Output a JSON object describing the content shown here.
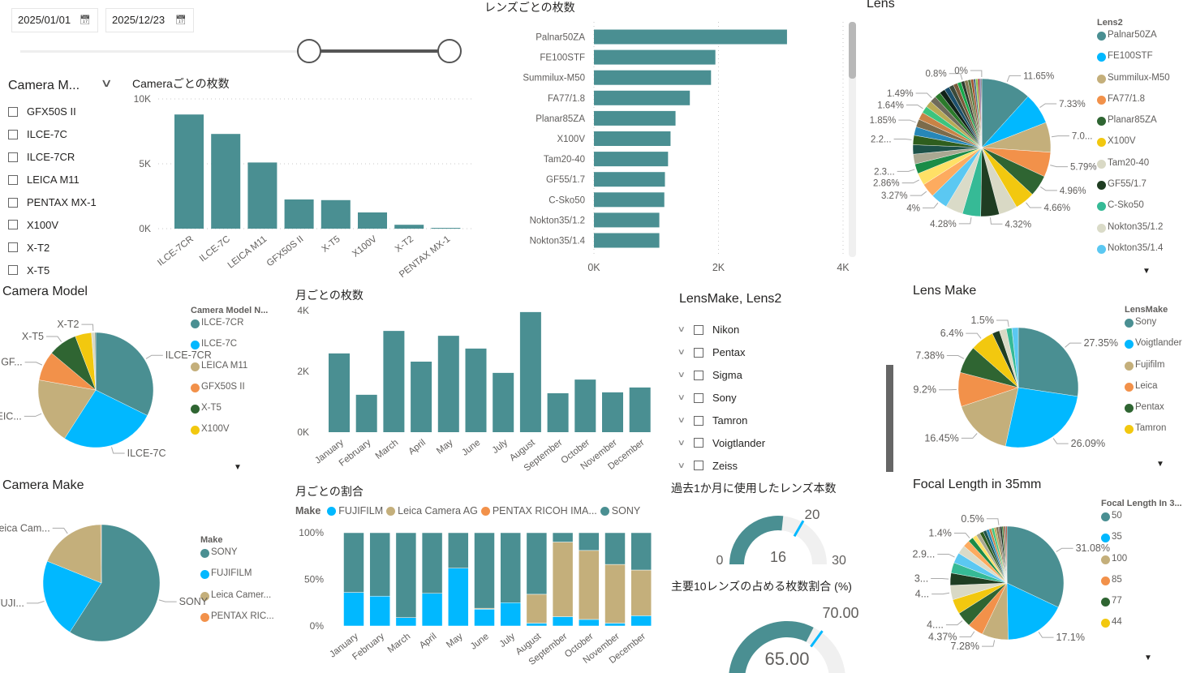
{
  "date_filter": {
    "start": "2025/01/01",
    "end": "2025/12/23",
    "calendar_icon": "calendar-icon"
  },
  "camera_slicer": {
    "title": "Camera M...",
    "items": [
      "GFX50S II",
      "ILCE-7C",
      "ILCE-7CR",
      "LEICA M11",
      "PENTAX MX-1",
      "X100V",
      "X-T2",
      "X-T5"
    ]
  },
  "lens_slicer": {
    "title": "LensMake, Lens2",
    "items": [
      "Nikon",
      "Pentax",
      "Sigma",
      "Sony",
      "Tamron",
      "Voigtlander",
      "Zeiss"
    ]
  },
  "colors": {
    "teal": "#4A8F92",
    "blue": "#01B8FF",
    "tan": "#C4AF7B",
    "orange": "#F2914A",
    "green": "#2F6532",
    "yellow": "#F2C80F",
    "track": "#F0F0F0"
  },
  "chart_data": [
    {
      "id": "camera_bar",
      "type": "bar",
      "title": "Cameraごとの枚数",
      "categories": [
        "ILCE-7CR",
        "ILCE-7C",
        "LEICA M11",
        "GFX50S II",
        "X-T5",
        "X100V",
        "X-T2",
        "PENTAX MX-1"
      ],
      "values": [
        8800,
        7300,
        5100,
        2250,
        2200,
        1250,
        300,
        60
      ],
      "yticks": [
        "0K",
        "5K",
        "10K"
      ],
      "ylim": [
        0,
        10000
      ],
      "grid": true
    },
    {
      "id": "lens_bar",
      "type": "bar",
      "orientation": "horizontal",
      "title": "レンズごとの枚数",
      "categories": [
        "Palnar50ZA",
        "FE100STF",
        "Summilux-M50",
        "FA77/1.8",
        "Planar85ZA",
        "X100V",
        "Tam20-40",
        "GF55/1.7",
        "C-Sko50",
        "Nokton35/1.2",
        "Nokton35/1.4"
      ],
      "values": [
        3100,
        1950,
        1880,
        1540,
        1310,
        1230,
        1190,
        1140,
        1130,
        1050,
        1050
      ],
      "xticks": [
        "0K",
        "2K",
        "4K"
      ],
      "xlim": [
        0,
        4000
      ],
      "grid": true
    },
    {
      "id": "lens_pie",
      "type": "pie",
      "title": "Lens",
      "legend_title": "Lens2",
      "legend_placement": "right",
      "slices": [
        {
          "name": "Palnar50ZA",
          "value": 11.65,
          "label": "11.65%",
          "color": "#4A8F92"
        },
        {
          "name": "FE100STF",
          "value": 7.33,
          "label": "7.33%",
          "color": "#01B8FF"
        },
        {
          "name": "Summilux-M50",
          "value": 7.0,
          "label": "7.0...",
          "color": "#C4AF7B"
        },
        {
          "name": "FA77/1.8",
          "value": 5.79,
          "label": "5.79%",
          "color": "#F2914A"
        },
        {
          "name": "Planar85ZA",
          "value": 4.96,
          "label": "4.96%",
          "color": "#2F6532"
        },
        {
          "name": "X100V",
          "value": 4.66,
          "label": "4.66%",
          "color": "#F2C80F"
        },
        {
          "name": "Tam20-40",
          "value": 4.32,
          "label": "",
          "color": "#D9D9C5"
        },
        {
          "name": "GF55/1.7",
          "value": 4.32,
          "label": "4.32%",
          "color": "#1F3D22"
        },
        {
          "name": "C-Sko50",
          "value": 4.28,
          "label": "4.28%",
          "color": "#36BA96"
        },
        {
          "name": "Nokton35/1.2",
          "value": 4.1,
          "label": "",
          "color": "#DADBC8"
        },
        {
          "name": "Nokton35/1.4",
          "value": 4.0,
          "label": "4%",
          "color": "#5BC8F2"
        },
        {
          "value": 3.27,
          "label": "3.27%",
          "color": "#FDAB5F"
        },
        {
          "value": 2.86,
          "label": "2.86%",
          "color": "#FFE066"
        },
        {
          "value": 2.3,
          "label": "2.3...",
          "color": "#1A8C47"
        },
        {
          "value": 2.3,
          "label": "",
          "color": "#A9A892"
        },
        {
          "value": 2.2,
          "label": "",
          "color": "#1D5249"
        },
        {
          "value": 2.2,
          "label": "2.2...",
          "color": "#2F5E1E"
        },
        {
          "value": 2.0,
          "label": "",
          "color": "#2787B8"
        },
        {
          "value": 1.85,
          "label": "1.85%",
          "color": "#7C6B4B"
        },
        {
          "value": 1.75,
          "label": "",
          "color": "#C98346"
        },
        {
          "value": 1.64,
          "label": "1.64%",
          "color": "#3CC47E"
        },
        {
          "value": 1.55,
          "label": "",
          "color": "#B8AA56"
        },
        {
          "value": 1.49,
          "label": "1.49%",
          "color": "#6E6B5B"
        },
        {
          "value": 1.4,
          "label": "",
          "color": "#2B7A2B"
        },
        {
          "value": 1.3,
          "label": "",
          "color": "#112218"
        },
        {
          "value": 1.2,
          "label": "",
          "color": "#1B4F6B"
        },
        {
          "value": 1.1,
          "label": "",
          "color": "#3B4A3A"
        },
        {
          "value": 1.0,
          "label": "",
          "color": "#7A5A3A"
        },
        {
          "value": 0.9,
          "label": "",
          "color": "#18A94A"
        },
        {
          "value": 0.8,
          "label": "0.8%",
          "color": "#2D3B2D"
        },
        {
          "value": 0.8,
          "label": "",
          "color": "#857A52"
        },
        {
          "value": 0.7,
          "label": "",
          "color": "#56763C"
        },
        {
          "value": 0.6,
          "label": "",
          "color": "#A0522D"
        },
        {
          "value": 0.5,
          "label": "",
          "color": "#4B6B8A"
        },
        {
          "value": 0.5,
          "label": "",
          "color": "#8BC34A"
        },
        {
          "value": 0.4,
          "label": "",
          "color": "#B03A2E"
        },
        {
          "value": 0.3,
          "label": "",
          "color": "#5E4B8B"
        },
        {
          "value": 0.2,
          "label": "",
          "color": "#333333"
        },
        {
          "value": 0.05,
          "label": "0%",
          "color": "#8E44AD"
        }
      ]
    },
    {
      "id": "camera_model_pie",
      "type": "pie",
      "title": "Camera Model",
      "legend_title": "Camera Model N...",
      "legend_placement": "right",
      "slices": [
        {
          "name": "ILCE-7CR",
          "value": 32.3,
          "label": "ILCE-7CR",
          "color": "#4A8F92"
        },
        {
          "name": "ILCE-7C",
          "value": 26.8,
          "label": "ILCE-7C",
          "color": "#01B8FF"
        },
        {
          "name": "LEICA M11",
          "value": 18.7,
          "label": "LEIC...",
          "color": "#C4AF7B"
        },
        {
          "name": "GFX50S II",
          "value": 8.3,
          "label": "GF...",
          "color": "#F2914A"
        },
        {
          "name": "X-T5",
          "value": 8.1,
          "label": "X-T5",
          "color": "#2F6532"
        },
        {
          "name": "X100V",
          "value": 4.6,
          "label": "",
          "color": "#F2C80F"
        },
        {
          "value": 1.0,
          "label": "X-T2",
          "color": "#D9D9C5"
        },
        {
          "value": 0.2,
          "label": "",
          "color": "#1F3D22"
        }
      ]
    },
    {
      "id": "monthly_bar",
      "type": "bar",
      "title": "月ごとの枚数",
      "categories": [
        "January",
        "February",
        "March",
        "April",
        "May",
        "June",
        "July",
        "August",
        "September",
        "October",
        "November",
        "December"
      ],
      "values": [
        2590,
        1230,
        3330,
        2320,
        3170,
        2750,
        1950,
        3950,
        1280,
        1730,
        1310,
        1470
      ],
      "yticks": [
        "0K",
        "2K",
        "4K"
      ],
      "ylim": [
        0,
        4000
      ],
      "grid": false
    },
    {
      "id": "lens_make_pie",
      "type": "pie",
      "title": "Lens Make",
      "legend_title": "LensMake",
      "legend_placement": "right",
      "slices": [
        {
          "name": "Sony",
          "value": 27.35,
          "label": "27.35%",
          "color": "#4A8F92"
        },
        {
          "name": "Voigtlander",
          "value": 26.09,
          "label": "26.09%",
          "color": "#01B8FF"
        },
        {
          "name": "Fujifilm",
          "value": 16.45,
          "label": "16.45%",
          "color": "#C4AF7B"
        },
        {
          "name": "Leica",
          "value": 9.2,
          "label": "9.2%",
          "color": "#F2914A"
        },
        {
          "name": "Pentax",
          "value": 7.38,
          "label": "7.38%",
          "color": "#2F6532"
        },
        {
          "name": "Tamron",
          "value": 6.4,
          "label": "6.4%",
          "color": "#F2C80F"
        },
        {
          "value": 2.0,
          "label": "",
          "color": "#1F3D22"
        },
        {
          "value": 1.9,
          "label": "",
          "color": "#D9D9C5"
        },
        {
          "value": 1.5,
          "label": "1.5%",
          "color": "#36BA96"
        },
        {
          "value": 1.73,
          "label": "",
          "color": "#5BC8F2"
        }
      ]
    },
    {
      "id": "camera_make_pie",
      "type": "pie",
      "title": "Camera Make",
      "legend_title": "Make",
      "legend_placement": "right",
      "slices": [
        {
          "name": "SONY",
          "value": 59.1,
          "label": "SONY",
          "color": "#4A8F92"
        },
        {
          "name": "FUJIFILM",
          "value": 22.0,
          "label": "FUJI...",
          "color": "#01B8FF"
        },
        {
          "name": "Leica Camer...",
          "value": 18.7,
          "label": "Leica Cam...",
          "color": "#C4AF7B"
        },
        {
          "name": "PENTAX RIC...",
          "value": 0.2,
          "label": "",
          "color": "#F2914A"
        }
      ]
    },
    {
      "id": "monthly_share",
      "type": "bar",
      "stacked": "100%",
      "title": "月ごとの割合",
      "legend_title": "Make",
      "legend_placement": "top",
      "categories": [
        "January",
        "February",
        "March",
        "April",
        "May",
        "June",
        "July",
        "August",
        "September",
        "October",
        "November",
        "December"
      ],
      "series": [
        {
          "name": "FUJIFILM",
          "color": "#01B8FF",
          "values": [
            36,
            32,
            9,
            35,
            62,
            18,
            25,
            3,
            10,
            7,
            3,
            11
          ]
        },
        {
          "name": "Leica Camera AG",
          "color": "#C4AF7B",
          "values": [
            0,
            0,
            0,
            0,
            0,
            1,
            0,
            31,
            80,
            74,
            63,
            49
          ]
        },
        {
          "name": "PENTAX RICOH IMA...",
          "color": "#F2914A",
          "values": [
            0,
            0,
            0,
            0,
            0,
            0,
            0,
            0,
            0,
            0,
            0,
            0
          ]
        },
        {
          "name": "SONY",
          "color": "#4A8F92",
          "values": [
            64,
            68,
            91,
            65,
            38,
            81,
            75,
            66,
            10,
            19,
            34,
            40
          ]
        }
      ],
      "yticks": [
        "0%",
        "50%",
        "100%"
      ],
      "ylim": [
        0,
        100
      ]
    },
    {
      "id": "gauge_lenses",
      "type": "gauge",
      "title": "過去1か月に使用したレンズ本数",
      "value": 16,
      "min": 0,
      "max": 30,
      "target": 20,
      "value_label": "16",
      "min_label": "0",
      "max_label": "30",
      "target_label": "20"
    },
    {
      "id": "gauge_top10",
      "type": "gauge",
      "title": "主要10レンズの占める枚数割合 (%)",
      "value": 65,
      "min": 0,
      "max": 100,
      "target": 70,
      "value_label": "65.00",
      "target_label": "70.00"
    },
    {
      "id": "focal_pie",
      "type": "pie",
      "title": "Focal Length in 35mm",
      "legend_title": "Focal Length In 3...",
      "legend_placement": "right",
      "slices": [
        {
          "name": "50",
          "value": 31.08,
          "label": "31.08%",
          "color": "#4A8F92"
        },
        {
          "name": "35",
          "value": 17.1,
          "label": "17.1%",
          "color": "#01B8FF"
        },
        {
          "name": "100",
          "value": 7.28,
          "label": "7.28%",
          "color": "#C4AF7B"
        },
        {
          "name": "85",
          "value": 4.37,
          "label": "4.37%",
          "color": "#F2914A"
        },
        {
          "name": "77",
          "value": 4.2,
          "label": "4....",
          "color": "#2F6532"
        },
        {
          "name": "44",
          "value": 4.1,
          "label": "",
          "color": "#F2C80F"
        },
        {
          "value": 4.0,
          "label": "4...",
          "color": "#D9D9C5"
        },
        {
          "value": 3.4,
          "label": "3...",
          "color": "#1F3D22"
        },
        {
          "value": 2.9,
          "label": "",
          "color": "#36BA96"
        },
        {
          "value": 2.9,
          "label": "2.9...",
          "color": "#5BC8F2"
        },
        {
          "value": 2.4,
          "label": "",
          "color": "#DADBC8"
        },
        {
          "value": 1.9,
          "label": "",
          "color": "#FDAB5F"
        },
        {
          "value": 1.4,
          "label": "1.4%",
          "color": "#1A8C47"
        },
        {
          "value": 1.2,
          "label": "",
          "color": "#FFE066"
        },
        {
          "value": 1.1,
          "label": "",
          "color": "#A9A892"
        },
        {
          "value": 1.0,
          "label": "",
          "color": "#2F5E1E"
        },
        {
          "value": 0.9,
          "label": "",
          "color": "#1D5249"
        },
        {
          "value": 0.8,
          "label": "",
          "color": "#2787B8"
        },
        {
          "value": 0.7,
          "label": "",
          "color": "#C98346"
        },
        {
          "value": 0.7,
          "label": "",
          "color": "#3CC47E"
        },
        {
          "value": 0.6,
          "label": "",
          "color": "#B8AA56"
        },
        {
          "value": 0.6,
          "label": "",
          "color": "#7C6B4B"
        },
        {
          "value": 0.5,
          "label": "0.5%",
          "color": "#6E6B5B"
        },
        {
          "value": 0.5,
          "label": "",
          "color": "#112218"
        },
        {
          "value": 0.4,
          "label": "",
          "color": "#2B7A2B"
        },
        {
          "value": 0.4,
          "label": "",
          "color": "#A0522D"
        },
        {
          "value": 0.3,
          "label": "",
          "color": "#3B4A3A"
        },
        {
          "value": 0.3,
          "label": "",
          "color": "#B03A2E"
        }
      ]
    }
  ]
}
